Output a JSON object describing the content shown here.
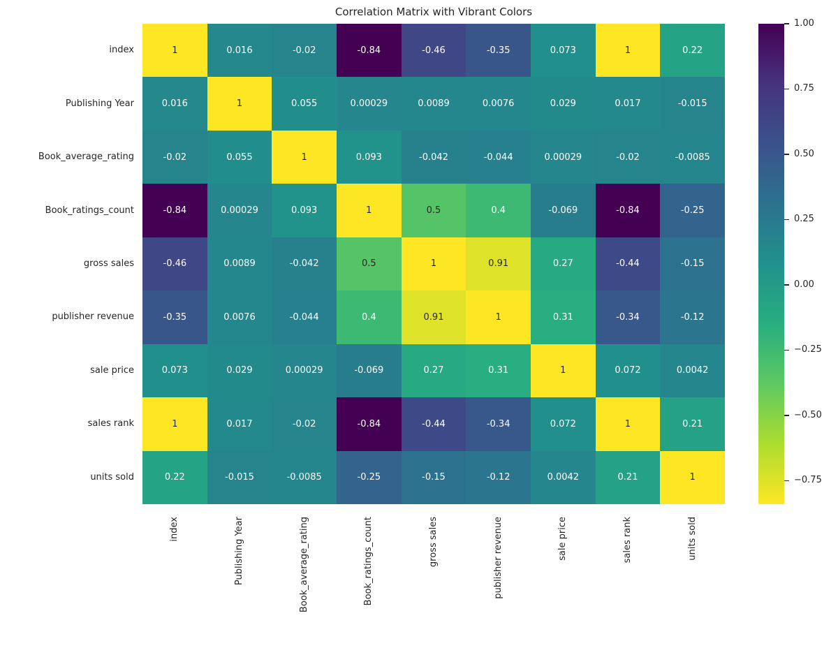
{
  "chart_data": {
    "type": "heatmap",
    "title": "Correlation Matrix with Vibrant Colors",
    "labels": [
      "index",
      "Publishing Year",
      "Book_average_rating",
      "Book_ratings_count",
      "gross sales",
      "publisher revenue",
      "sale price",
      "sales rank",
      "units sold"
    ],
    "matrix": [
      [
        1,
        0.016,
        -0.02,
        -0.84,
        -0.46,
        -0.35,
        0.073,
        1,
        0.22
      ],
      [
        0.016,
        1,
        0.055,
        0.00029,
        0.0089,
        0.0076,
        0.029,
        0.017,
        -0.015
      ],
      [
        -0.02,
        0.055,
        1,
        0.093,
        -0.042,
        -0.044,
        0.00029,
        -0.02,
        -0.0085
      ],
      [
        -0.84,
        0.00029,
        0.093,
        1,
        0.5,
        0.4,
        -0.069,
        -0.84,
        -0.25
      ],
      [
        -0.46,
        0.0089,
        -0.042,
        0.5,
        1,
        0.91,
        0.27,
        -0.44,
        -0.15
      ],
      [
        -0.35,
        0.0076,
        -0.044,
        0.4,
        0.91,
        1,
        0.31,
        -0.34,
        -0.12
      ],
      [
        0.073,
        0.029,
        0.00029,
        -0.069,
        0.27,
        0.31,
        1,
        0.072,
        0.0042
      ],
      [
        1,
        0.017,
        -0.02,
        -0.84,
        -0.44,
        -0.34,
        0.072,
        1,
        0.21
      ],
      [
        0.22,
        -0.015,
        -0.0085,
        -0.25,
        -0.15,
        -0.12,
        0.0042,
        0.21,
        1
      ]
    ],
    "colormap": "viridis",
    "colormap_stops": [
      "#440154",
      "#46327e",
      "#3b528b",
      "#2c728e",
      "#21918c",
      "#28ae80",
      "#5ec962",
      "#addc30",
      "#fde725"
    ],
    "vmin": -0.84,
    "vmax": 1.0,
    "colorbar": {
      "tick_labels": [
        "1.00",
        "0.75",
        "0.50",
        "0.25",
        "0.00",
        "−0.25",
        "−0.50",
        "−0.75"
      ],
      "tick_values": [
        1.0,
        0.75,
        0.5,
        0.25,
        0.0,
        -0.25,
        -0.5,
        -0.75
      ]
    },
    "annotation_colors": {
      "dark": "#262626",
      "light": "#ffffff"
    },
    "background": "#ffffff",
    "legend_position": "right-colorbar",
    "grid": false
  }
}
